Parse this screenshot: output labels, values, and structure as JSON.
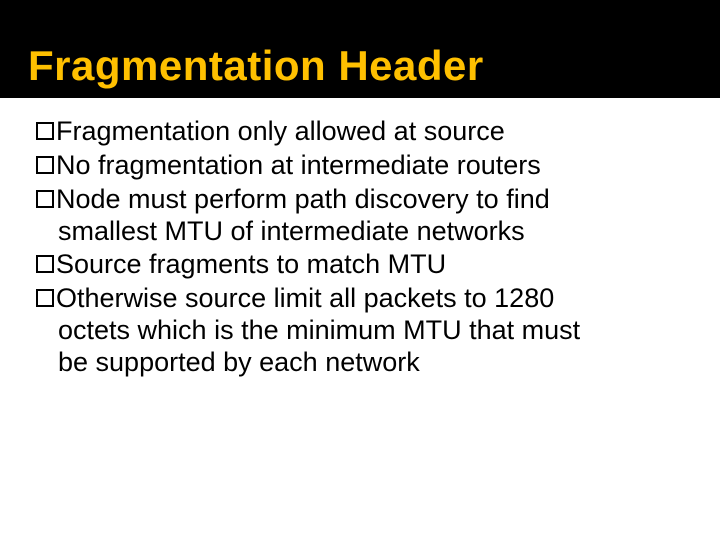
{
  "slide": {
    "title": "Fragmentation Header",
    "title_color": "#ffc000",
    "title_band_color": "#000000",
    "background_color": "#ffffff",
    "body_text_color": "#000000",
    "title_fontsize": 42,
    "body_fontsize": 27,
    "bullets": [
      {
        "lines": [
          "Fragmentation only allowed at source"
        ]
      },
      {
        "lines": [
          "No fragmentation at intermediate routers"
        ]
      },
      {
        "lines": [
          "Node must perform path discovery to find",
          "smallest MTU of intermediate networks"
        ]
      },
      {
        "lines": [
          "Source fragments to match MTU"
        ]
      },
      {
        "lines": [
          "Otherwise source limit all packets to 1280",
          "octets which is the minimum MTU that must",
          "be supported by each network"
        ]
      }
    ]
  }
}
